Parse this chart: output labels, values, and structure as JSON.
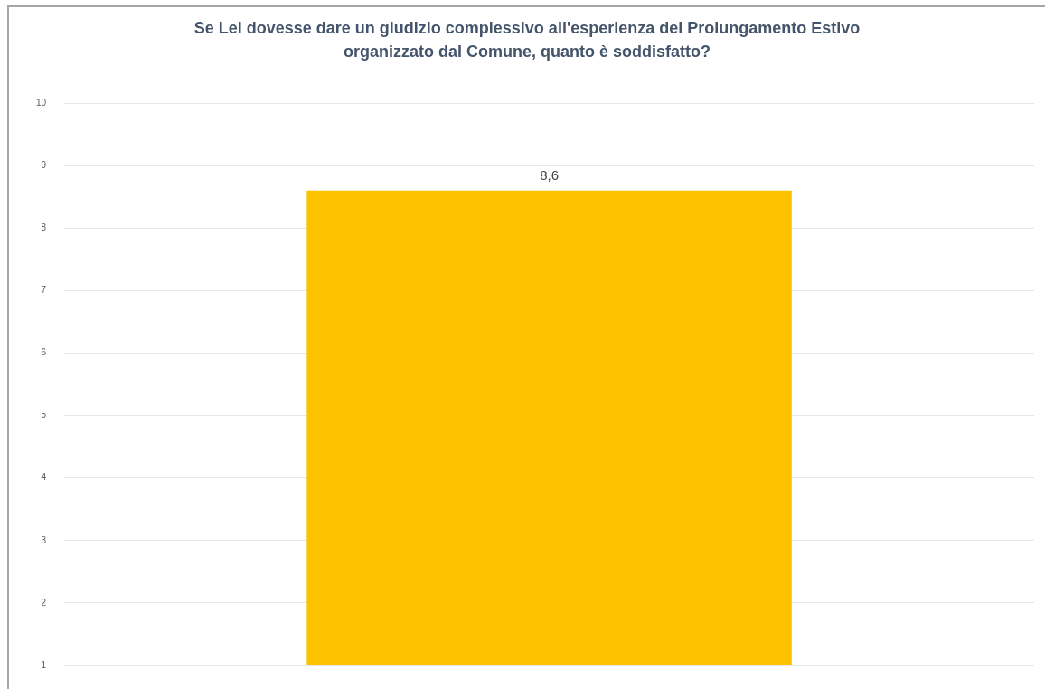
{
  "chart_data": {
    "type": "bar",
    "title": "Se Lei dovesse dare un giudizio complessivo all'esperienza del Prolungamento Estivo\norganizzato dal Comune,  quanto è soddisfatto?",
    "categories": [
      null
    ],
    "values": [
      8.6
    ],
    "color": "#fcc200",
    "value_labels": [
      "8,6"
    ],
    "ylim": [
      1,
      10
    ],
    "yticks": [
      1,
      2,
      3,
      4,
      5,
      6,
      7,
      8,
      9,
      10
    ],
    "grid": "y",
    "legend": false
  }
}
